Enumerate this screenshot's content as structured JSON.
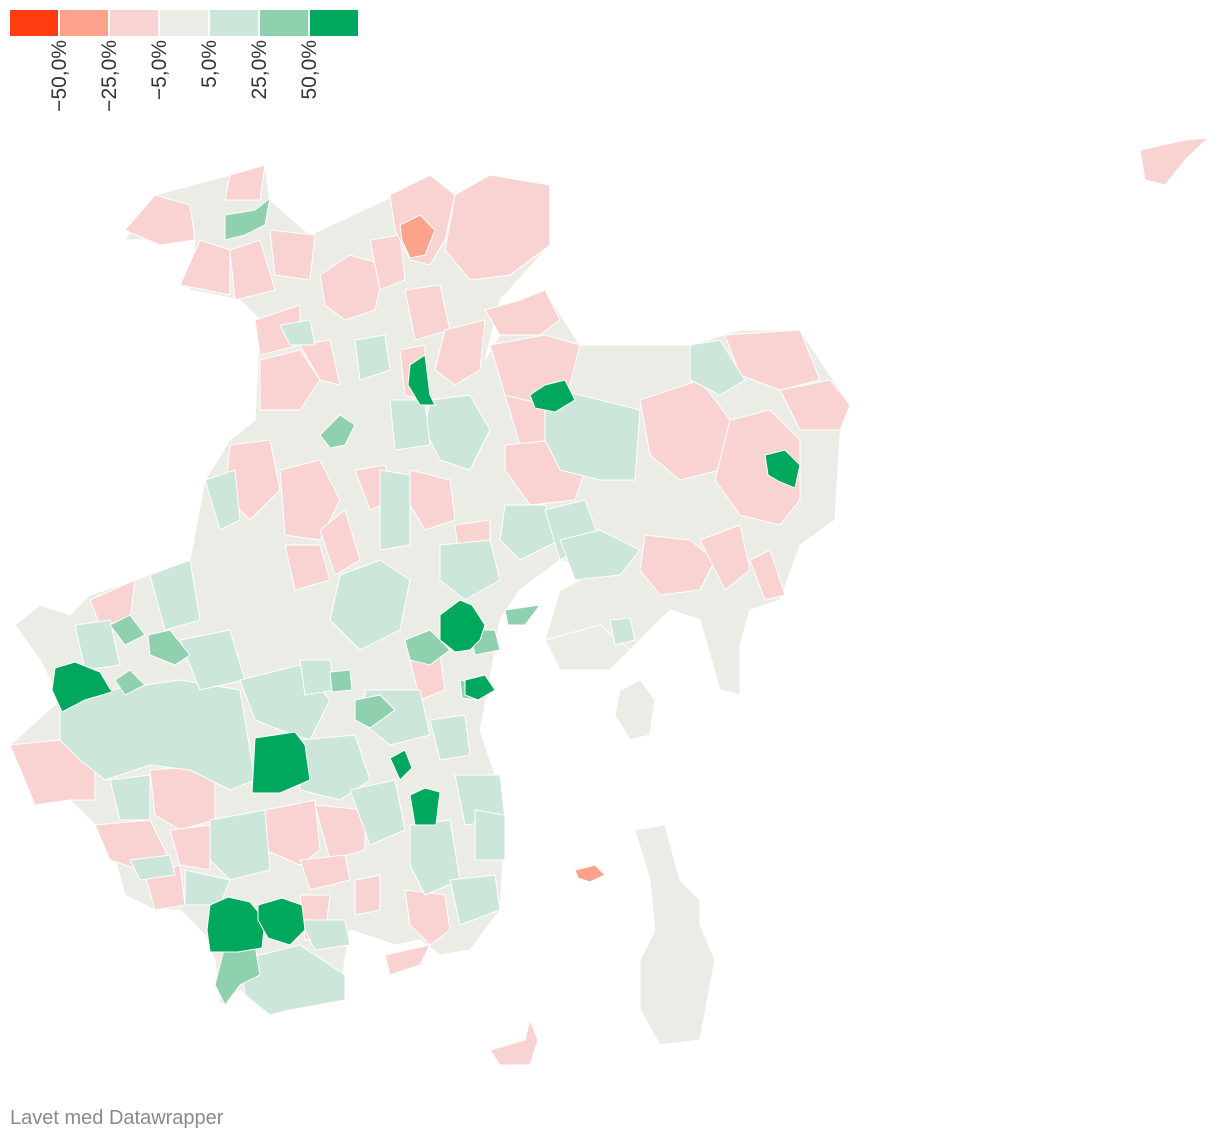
{
  "legend": {
    "bins": [
      {
        "color": "#ff3d10"
      },
      {
        "color": "#fda28b"
      },
      {
        "color": "#f9d3d2"
      },
      {
        "color": "#ecece6"
      },
      {
        "color": "#cce6da"
      },
      {
        "color": "#8fd1ae"
      },
      {
        "color": "#00a85e"
      }
    ],
    "labels": [
      "−50,0%",
      "−25,0%",
      "−5,0%",
      "5,0%",
      "25,0%",
      "50,0%"
    ]
  },
  "colors": {
    "decline_strong": "#ff3d10",
    "decline": "#fda28b",
    "decline_light": "#f9d3d2",
    "neutral": "#ecece6",
    "growth_light": "#cce6da",
    "growth": "#8fd1ae",
    "growth_strong": "#00a85e",
    "border": "#ffffff"
  },
  "credit": "Lavet med Datawrapper"
}
